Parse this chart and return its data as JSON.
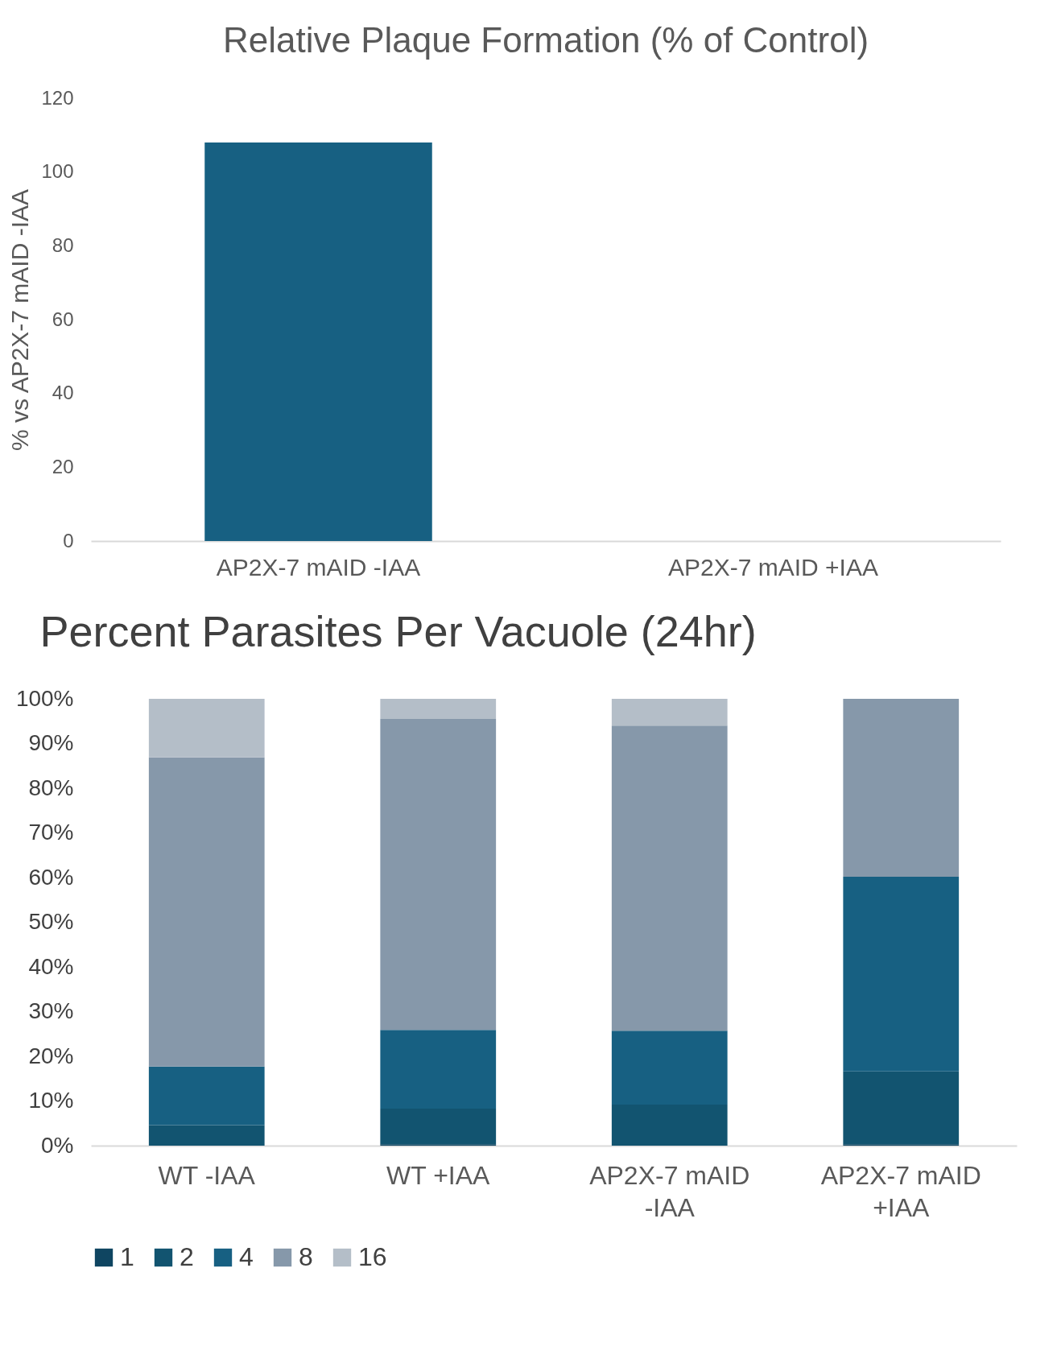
{
  "chart_data": [
    {
      "type": "bar",
      "title": "Relative Plaque Formation (% of Control)",
      "ylabel": "% vs AP2X-7 mAID -IAA",
      "categories": [
        "AP2X-7 mAID -IAA",
        "AP2X-7 mAID +IAA"
      ],
      "values": [
        108,
        0
      ],
      "color": "#176082",
      "ylim": [
        0,
        120
      ],
      "yticks": [
        0,
        20,
        40,
        60,
        80,
        100,
        120
      ],
      "grid": false
    },
    {
      "type": "bar",
      "title": "Percent Parasites Per Vacuole (24hr)",
      "stacked": true,
      "categories": [
        "WT -IAA",
        "WT +IAA",
        "AP2X-7 mAID -IAA",
        "AP2X-7 mAID +IAA"
      ],
      "series": [
        {
          "name": "1",
          "color": "#0f4561",
          "values": [
            0,
            0.3,
            0,
            0.3
          ]
        },
        {
          "name": "2",
          "color": "#125470",
          "values": [
            4.6,
            8.0,
            9.2,
            16.3
          ]
        },
        {
          "name": "4",
          "color": "#176082",
          "values": [
            13.1,
            17.6,
            16.5,
            43.6
          ]
        },
        {
          "name": "8",
          "color": "#8698aa",
          "values": [
            69.2,
            69.6,
            68.3,
            39.8
          ]
        },
        {
          "name": "16",
          "color": "#b4bec8",
          "values": [
            13.1,
            4.5,
            6.0,
            0
          ]
        }
      ],
      "ylim": [
        0,
        100
      ],
      "yticks": [
        {
          "value": 0,
          "label": "0%"
        },
        {
          "value": 10,
          "label": "10%"
        },
        {
          "value": 20,
          "label": "20%"
        },
        {
          "value": 30,
          "label": "30%"
        },
        {
          "value": 40,
          "label": "40%"
        },
        {
          "value": 50,
          "label": "50%"
        },
        {
          "value": 60,
          "label": "60%"
        },
        {
          "value": 70,
          "label": "70%"
        },
        {
          "value": 80,
          "label": "80%"
        },
        {
          "value": 90,
          "label": "90%"
        },
        {
          "value": 100,
          "label": "100%"
        }
      ],
      "grid": false,
      "legend": "bottom"
    }
  ]
}
